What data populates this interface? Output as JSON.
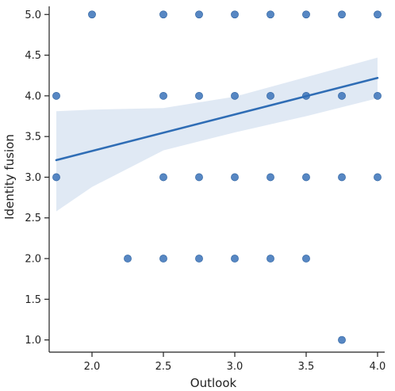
{
  "chart_data": {
    "type": "scatter",
    "xlabel": "Outlook",
    "ylabel": "Identity fusion",
    "xlim": [
      1.7,
      4.05
    ],
    "ylim": [
      0.85,
      5.1
    ],
    "x_ticks": [
      "2.0",
      "2.5",
      "3.0",
      "3.5",
      "4.0"
    ],
    "y_ticks": [
      "1.0",
      "1.5",
      "2.0",
      "2.5",
      "3.0",
      "3.5",
      "4.0",
      "4.5",
      "5.0"
    ],
    "grid": false,
    "points": [
      {
        "x": 2.0,
        "y": 5.0
      },
      {
        "x": 2.5,
        "y": 5.0
      },
      {
        "x": 2.75,
        "y": 5.0
      },
      {
        "x": 3.0,
        "y": 5.0
      },
      {
        "x": 3.25,
        "y": 5.0
      },
      {
        "x": 3.5,
        "y": 5.0
      },
      {
        "x": 3.75,
        "y": 5.0
      },
      {
        "x": 4.0,
        "y": 5.0
      },
      {
        "x": 1.75,
        "y": 4.0
      },
      {
        "x": 2.5,
        "y": 4.0
      },
      {
        "x": 2.75,
        "y": 4.0
      },
      {
        "x": 3.0,
        "y": 4.0
      },
      {
        "x": 3.25,
        "y": 4.0
      },
      {
        "x": 3.5,
        "y": 4.0
      },
      {
        "x": 3.75,
        "y": 4.0
      },
      {
        "x": 4.0,
        "y": 4.0
      },
      {
        "x": 1.75,
        "y": 3.0
      },
      {
        "x": 2.5,
        "y": 3.0
      },
      {
        "x": 2.75,
        "y": 3.0
      },
      {
        "x": 3.0,
        "y": 3.0
      },
      {
        "x": 3.25,
        "y": 3.0
      },
      {
        "x": 3.5,
        "y": 3.0
      },
      {
        "x": 3.75,
        "y": 3.0
      },
      {
        "x": 4.0,
        "y": 3.0
      },
      {
        "x": 2.25,
        "y": 2.0
      },
      {
        "x": 2.5,
        "y": 2.0
      },
      {
        "x": 2.75,
        "y": 2.0
      },
      {
        "x": 3.0,
        "y": 2.0
      },
      {
        "x": 3.25,
        "y": 2.0
      },
      {
        "x": 3.5,
        "y": 2.0
      },
      {
        "x": 3.75,
        "y": 1.0
      }
    ],
    "regression_line": {
      "x": [
        1.75,
        4.0
      ],
      "y": [
        3.21,
        4.22
      ]
    },
    "confidence_band": {
      "x": [
        1.75,
        2.0,
        2.5,
        3.0,
        3.5,
        4.0
      ],
      "lower": [
        2.58,
        2.88,
        3.33,
        3.55,
        3.75,
        3.97
      ],
      "upper": [
        3.81,
        3.83,
        3.85,
        3.99,
        4.23,
        4.47
      ]
    },
    "colors": {
      "point": "#3a72b8",
      "line": "#2f6db5",
      "band": "#dde7f3",
      "axis": "#222222"
    }
  }
}
